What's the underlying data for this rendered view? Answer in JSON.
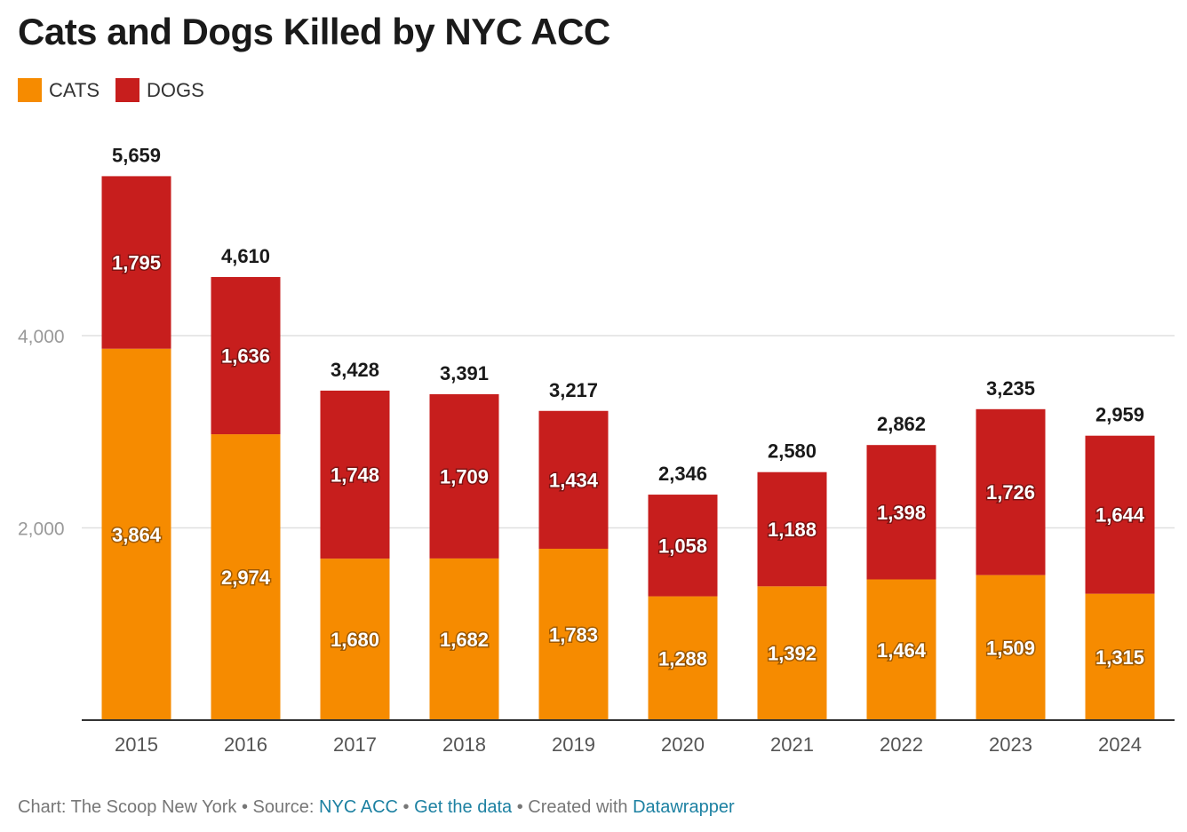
{
  "title": "Cats and Dogs Killed by NYC ACC",
  "legend": [
    {
      "label": "CATS",
      "color": "#f68b00"
    },
    {
      "label": "DOGS",
      "color": "#c71e1d"
    }
  ],
  "chart_data": {
    "type": "bar",
    "stacked": true,
    "categories": [
      "2015",
      "2016",
      "2017",
      "2018",
      "2019",
      "2020",
      "2021",
      "2022",
      "2023",
      "2024"
    ],
    "series": [
      {
        "name": "CATS",
        "color": "#f68b00",
        "values": [
          3864,
          2974,
          1680,
          1682,
          1783,
          1288,
          1392,
          1464,
          1509,
          1315
        ]
      },
      {
        "name": "DOGS",
        "color": "#c71e1d",
        "values": [
          1795,
          1636,
          1748,
          1709,
          1434,
          1058,
          1188,
          1398,
          1726,
          1644
        ]
      }
    ],
    "totals": [
      5659,
      4610,
      3428,
      3391,
      3217,
      2346,
      2580,
      2862,
      3235,
      2959
    ],
    "y_ticks": [
      2000,
      4000
    ],
    "y_tick_labels": [
      "2,000",
      "4,000"
    ],
    "ylim": [
      0,
      5659
    ],
    "grid": true,
    "legend_position": "top-left"
  },
  "footer": {
    "prefix": "Chart: The Scoop New York • Source: ",
    "source_link": "NYC ACC",
    "sep1": " • ",
    "data_link": "Get the data",
    "sep2": " • Created with ",
    "tool_link": "Datawrapper"
  }
}
